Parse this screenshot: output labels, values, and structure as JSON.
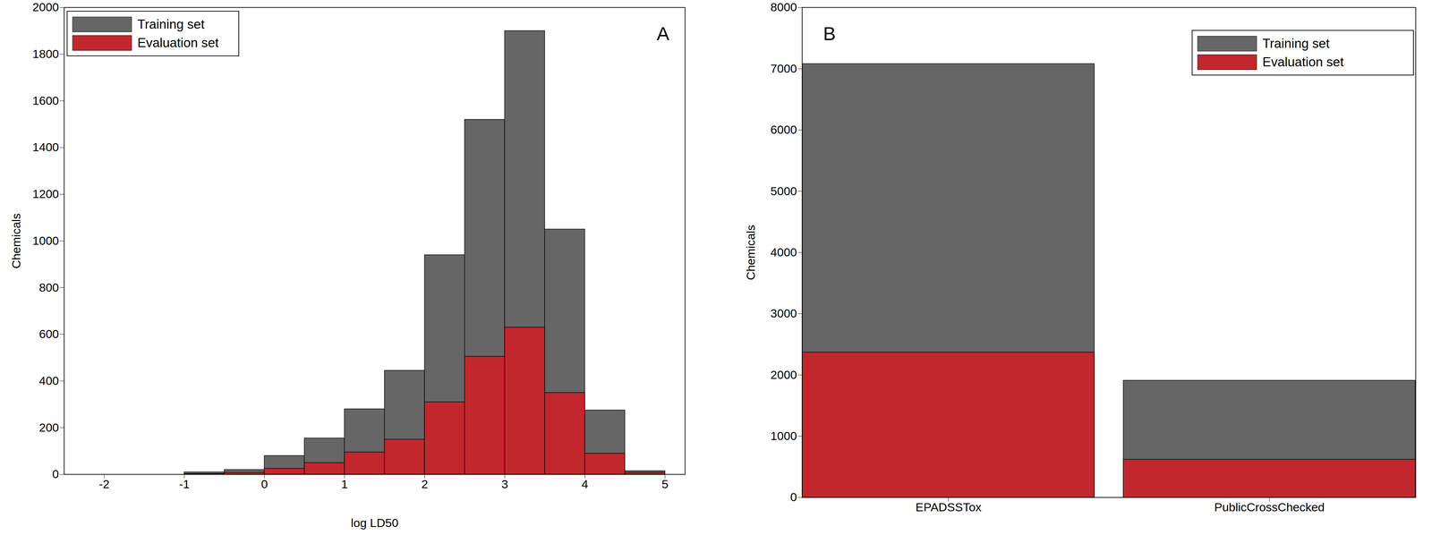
{
  "chart_data": [
    {
      "type": "histogram",
      "annotations": [
        "A"
      ],
      "x_label": "log LD50",
      "y_label": "Chemicals",
      "bins": [
        -1,
        -0.5,
        0,
        0.5,
        1,
        1.5,
        2,
        2.5,
        3,
        3.5,
        4,
        4.5,
        5
      ],
      "series": [
        {
          "name": "Training set",
          "color": "#666666",
          "values": [
            10,
            20,
            80,
            155,
            280,
            445,
            940,
            1520,
            1900,
            1050,
            275,
            15
          ]
        },
        {
          "name": "Evaluation set",
          "color": "#c1272d",
          "values": [
            3,
            8,
            25,
            50,
            95,
            150,
            310,
            505,
            630,
            350,
            90,
            8
          ]
        }
      ],
      "stacked": false,
      "xlim": [
        -2.5,
        5.25
      ],
      "xticks": [
        -2,
        -1,
        0,
        1,
        2,
        3,
        4,
        5
      ],
      "ylim": [
        0,
        2000
      ],
      "yticks": [
        0,
        200,
        400,
        600,
        800,
        1000,
        1200,
        1400,
        1600,
        1800,
        2000
      ],
      "legend": "upper left",
      "grid": false
    },
    {
      "type": "bar",
      "annotations": [
        "B"
      ],
      "y_label": "Chemicals",
      "categories": [
        "EPADSSTox",
        "PublicCrossChecked"
      ],
      "series": [
        {
          "name": "Training set",
          "color": "#666666",
          "values": [
            7080,
            1910
          ]
        },
        {
          "name": "Evaluation set",
          "color": "#c1272d",
          "values": [
            2370,
            620
          ]
        }
      ],
      "stacked": false,
      "ylim": [
        0,
        8000
      ],
      "yticks": [
        0,
        1000,
        2000,
        3000,
        4000,
        5000,
        6000,
        7000,
        8000
      ],
      "legend": "upper right",
      "grid": false
    }
  ]
}
